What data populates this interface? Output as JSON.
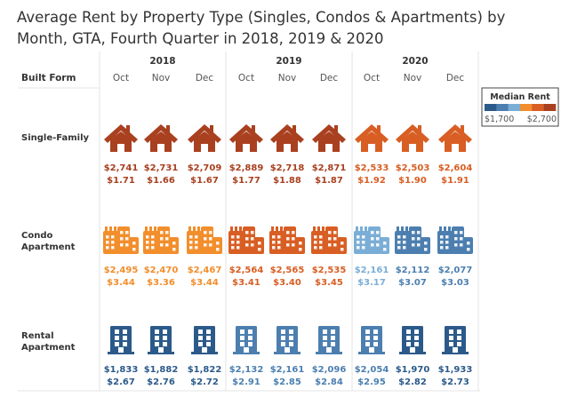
{
  "chart_data": {
    "type": "table",
    "title": "Average Rent by Property Type (Singles, Condos & Apartments) by Month, GTA, Fourth Quarter in 2018, 2019 & 2020",
    "row_header": "Built Form",
    "years": [
      "2018",
      "2019",
      "2020"
    ],
    "months": [
      "Oct",
      "Nov",
      "Dec"
    ],
    "rows": [
      {
        "label": [
          "Single-Family"
        ],
        "icon": "house-icon",
        "rent": [
          2741,
          2731,
          2709,
          2889,
          2718,
          2871,
          2533,
          2503,
          2604
        ],
        "rent_labels": [
          "$2,741",
          "$2,731",
          "$2,709",
          "$2,889",
          "$2,718",
          "$2,871",
          "$2,533",
          "$2,503",
          "$2,604"
        ],
        "per_sqft_labels": [
          "$1.71",
          "$1.66",
          "$1.67",
          "$1.77",
          "$1.88",
          "$1.87",
          "$1.92",
          "$1.90",
          "$1.91"
        ],
        "colors": [
          "#a9401f",
          "#a9401f",
          "#a9401f",
          "#a9401f",
          "#a9401f",
          "#a9401f",
          "#d85e23",
          "#d85e23",
          "#d85e23"
        ]
      },
      {
        "label": [
          "Condo",
          "Apartment"
        ],
        "icon": "condo-building-icon",
        "rent": [
          2495,
          2470,
          2467,
          2564,
          2565,
          2535,
          2161,
          2112,
          2077
        ],
        "rent_labels": [
          "$2,495",
          "$2,470",
          "$2,467",
          "$2,564",
          "$2,565",
          "$2,535",
          "$2,161",
          "$2,112",
          "$2,077"
        ],
        "per_sqft_labels": [
          "$3.44",
          "$3.36",
          "$3.44",
          "$3.41",
          "$3.40",
          "$3.45",
          "$3.17",
          "$3.07",
          "$3.03"
        ],
        "colors": [
          "#f28e2c",
          "#f28e2c",
          "#f28e2c",
          "#d85e23",
          "#d85e23",
          "#d85e23",
          "#7aaed6",
          "#4c7fb0",
          "#4c7fb0"
        ]
      },
      {
        "label": [
          "Rental",
          "Apartment"
        ],
        "icon": "apartment-tower-icon",
        "rent": [
          1833,
          1882,
          1822,
          2132,
          2161,
          2096,
          2054,
          1970,
          1933
        ],
        "rent_labels": [
          "$1,833",
          "$1,882",
          "$1,822",
          "$2,132",
          "$2,161",
          "$2,096",
          "$2,054",
          "$1,970",
          "$1,933"
        ],
        "per_sqft_labels": [
          "$2.67",
          "$2.76",
          "$2.72",
          "$2.91",
          "$2.85",
          "$2.84",
          "$2.95",
          "$2.82",
          "$2.73"
        ],
        "colors": [
          "#2b5a8a",
          "#2b5a8a",
          "#2b5a8a",
          "#4c7fb0",
          "#4c7fb0",
          "#4c7fb0",
          "#4c7fb0",
          "#2b5a8a",
          "#2b5a8a"
        ]
      }
    ],
    "legend": {
      "title": "Median Rent",
      "min_label": "$1,700",
      "max_label": "$2,700",
      "range": [
        1700,
        2700
      ],
      "placement": "top-right",
      "colors": [
        "#2b5a8a",
        "#4c7fb0",
        "#7aaed6",
        "#f28e2c",
        "#d85e23",
        "#a9401f"
      ]
    }
  }
}
